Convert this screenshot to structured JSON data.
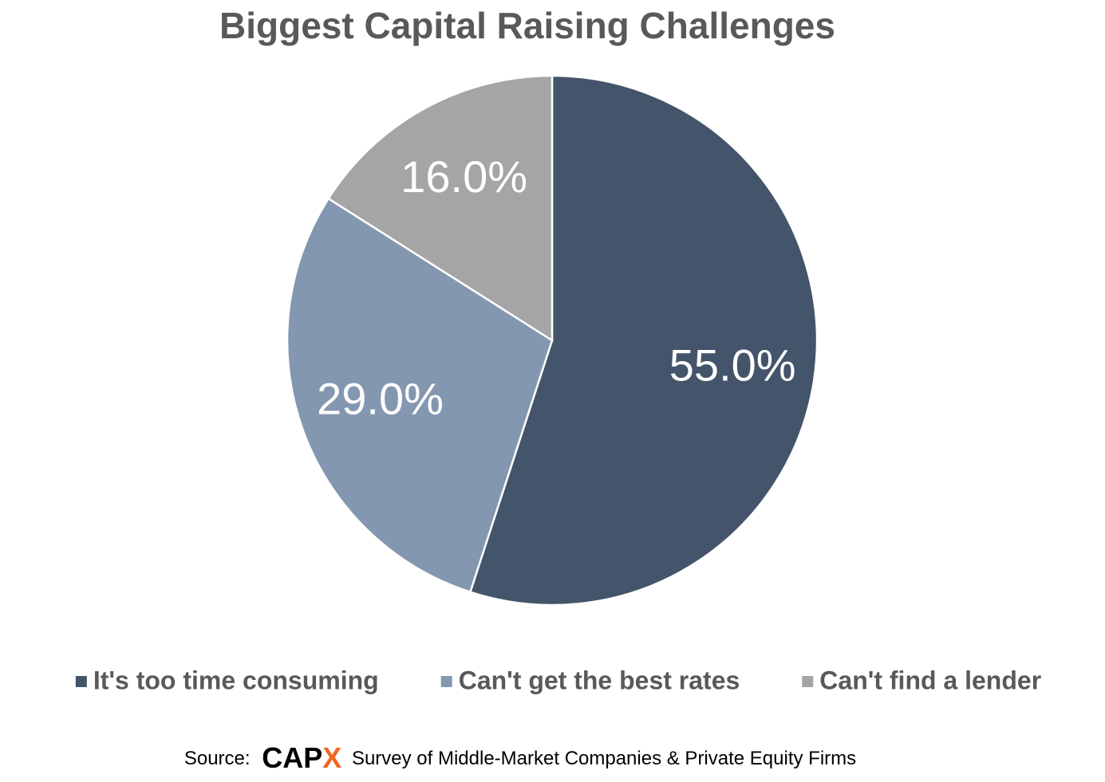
{
  "chart_data": {
    "type": "pie",
    "title": "Biggest Capital Raising Challenges",
    "categories": [
      "It's too time consuming",
      "Can't get the best rates",
      "Can't find a lender"
    ],
    "values": [
      55,
      29,
      16
    ],
    "value_labels": [
      "55.0%",
      "29.0%",
      "16.0%"
    ],
    "colors": [
      "#44546a",
      "#8497b0",
      "#a5a5a5"
    ],
    "legend": "bottom",
    "source": {
      "prefix": "Source:",
      "brand_main": "CAP",
      "brand_accent": "X",
      "text": "Survey of Middle-Market Companies & Private Equity Firms"
    }
  }
}
